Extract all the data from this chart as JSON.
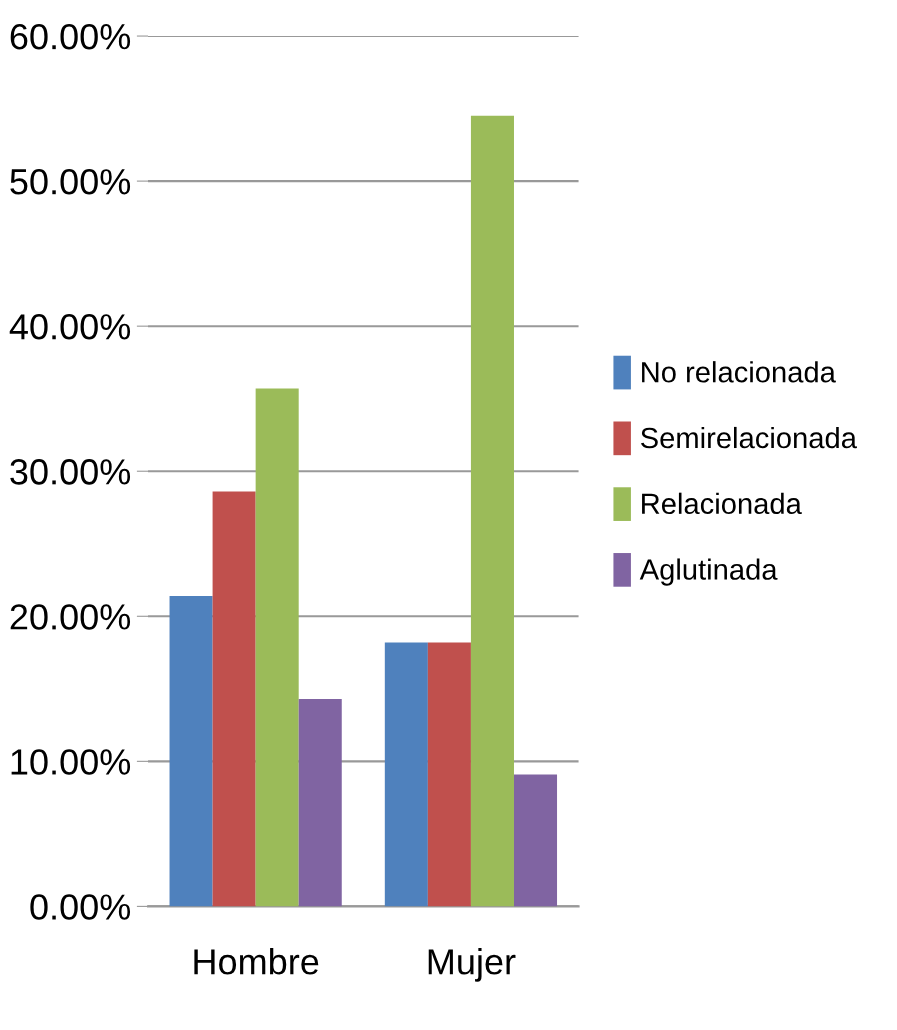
{
  "chart_data": {
    "type": "bar",
    "categories": [
      "Hombre",
      "Mujer"
    ],
    "series": [
      {
        "name": "No relacionada",
        "color": "#4f81bd",
        "values": [
          21.4,
          18.2
        ]
      },
      {
        "name": "Semirelacionada",
        "color": "#c0504d",
        "values": [
          28.6,
          18.2
        ]
      },
      {
        "name": "Relacionada",
        "color": "#9bbb59",
        "values": [
          35.7,
          54.5
        ]
      },
      {
        "name": "Aglutinada",
        "color": "#8064a2",
        "values": [
          14.3,
          9.1
        ]
      }
    ],
    "ylim": [
      0,
      60
    ],
    "yticks": [
      {
        "value": 0,
        "label": "0.00%"
      },
      {
        "value": 10,
        "label": "10.00%"
      },
      {
        "value": 20,
        "label": "20.00%"
      },
      {
        "value": 30,
        "label": "30.00%"
      },
      {
        "value": 40,
        "label": "40.00%"
      },
      {
        "value": 50,
        "label": "50.00%"
      },
      {
        "value": 60,
        "label": "60.00%"
      }
    ],
    "grid": "y",
    "legend": "right"
  }
}
